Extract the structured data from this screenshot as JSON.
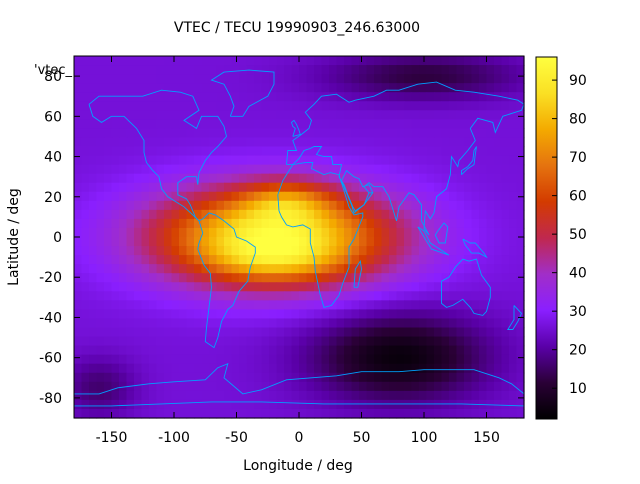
{
  "chart_data": {
    "type": "heatmap",
    "title": "VTEC / TECU 19990903_246.63000",
    "xlabel": "Longitude / deg",
    "ylabel": "Latitude / deg",
    "legend_label": "'vtec_",
    "xlim": [
      -180,
      180
    ],
    "ylim": [
      -90,
      90
    ],
    "x_ticks": [
      -150,
      -100,
      -50,
      0,
      50,
      100,
      150
    ],
    "y_ticks": [
      -80,
      -60,
      -40,
      -20,
      0,
      20,
      40,
      60,
      80
    ],
    "colorbar": {
      "range": [
        2,
        96
      ],
      "ticks": [
        10,
        20,
        30,
        40,
        50,
        60,
        70,
        80,
        90
      ],
      "palette": [
        "#000000",
        "#2a0036",
        "#5a00a8",
        "#8a1fff",
        "#a12ec8",
        "#c0284f",
        "#d33b00",
        "#e5730f",
        "#f4aa00",
        "#fae024",
        "#ffff40"
      ]
    },
    "field_model": {
      "background_tecu": 26,
      "features": [
        {
          "type": "equatorial-anomaly",
          "lon": -20,
          "lat": 0,
          "peak_tecu": 68,
          "lon_halfwidth": 95,
          "lat_halfwidth": 24
        },
        {
          "type": "crest",
          "lon": -10,
          "lat": 18,
          "peak_tecu": 18,
          "lon_halfwidth": 35,
          "lat_halfwidth": 10
        },
        {
          "type": "crest",
          "lon": -20,
          "lat": -12,
          "peak_tecu": 12,
          "lon_halfwidth": 50,
          "lat_halfwidth": 10
        },
        {
          "type": "depletion",
          "lon": 80,
          "lat": -60,
          "depth_tecu": 22,
          "lon_halfwidth": 70,
          "lat_halfwidth": 22
        },
        {
          "type": "depletion",
          "lon": 100,
          "lat": 80,
          "depth_tecu": 14,
          "lon_halfwidth": 80,
          "lat_halfwidth": 12
        },
        {
          "type": "depletion",
          "lon": -160,
          "lat": -75,
          "depth_tecu": 10,
          "lon_halfwidth": 30,
          "lat_halfwidth": 15
        }
      ]
    },
    "overlay": "coastlines",
    "coastline_color": "#00a0ff"
  }
}
